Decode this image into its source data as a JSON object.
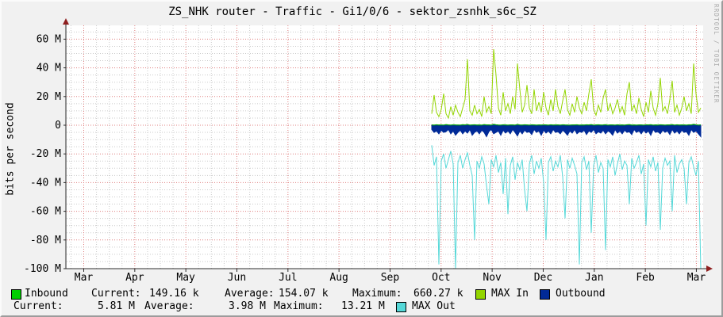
{
  "title": "ZS_NHK router - Traffic - Gi1/0/6 - sektor_zsnhk_s6c_SZ",
  "y_axis_label": "bits per second",
  "watermark": "RRDTOOL / TOBI OETIKER",
  "colors": {
    "background": "#F1F1F1",
    "canvas": "#FFFFFF",
    "grid_major": "#E08080",
    "grid_minor": "#CBCBCB",
    "axis": "#2C2C2C",
    "arrow": "#8F1F1F",
    "inbound": "#00CF00",
    "inbound_line": "#00A000",
    "max_in": "#93D500",
    "outbound": "#002A97",
    "max_out": "#55D8D8"
  },
  "legend": {
    "inbound_label": "Inbound",
    "max_in_label": "MAX In",
    "outbound_label": "Outbound",
    "max_out_label": "MAX Out",
    "row1": {
      "current_label": "Current:",
      "current": "149.16 k",
      "average_label": "Average:",
      "average": "154.07 k",
      "maximum_label": "Maximum:",
      "maximum": "660.27 k"
    },
    "row2": {
      "current_label": "Current:",
      "current": "5.81 M",
      "average_label": "Average:",
      "average": "3.98 M",
      "maximum_label": "Maximum:",
      "maximum": "13.21 M"
    }
  },
  "chart_data": {
    "type": "line",
    "title": "ZS_NHK router - Traffic - Gi1/0/6 - sektor_zsnhk_s6c_SZ",
    "xlabel": "",
    "ylabel": "bits per second",
    "units": "series values in Mbit/s (negative = outbound direction)",
    "ylim_M": [
      -100,
      70
    ],
    "y_tick_values_M": [
      60,
      40,
      20,
      0,
      -20,
      -40,
      -60,
      -80,
      -100
    ],
    "y_tick_labels": [
      "60 M",
      "40 M",
      "20 M",
      "0",
      "-20 M",
      "-40 M",
      "-60 M",
      "-80 M",
      "-100 M"
    ],
    "x_tick_labels": [
      "Mar",
      "Apr",
      "May",
      "Jun",
      "Jul",
      "Aug",
      "Sep",
      "Oct",
      "Nov",
      "Dec",
      "Jan",
      "Feb",
      "Mar"
    ],
    "legend_position": "bottom",
    "grid": "dotted; red major every 20M / monthly, gray minor every 5M / weekly",
    "note": "No data Mar through late Sep; all four series begin just before Oct and run to early Mar",
    "series": [
      {
        "name": "MAX In",
        "style": "line",
        "color": "#93D500",
        "values": [
          8,
          21,
          9,
          6,
          11,
          22,
          8,
          5,
          13,
          7,
          14,
          9,
          6,
          12,
          18,
          46,
          10,
          7,
          14,
          8,
          11,
          6,
          20,
          9,
          13,
          8,
          53,
          35,
          12,
          7,
          23,
          10,
          15,
          8,
          20,
          11,
          43,
          25,
          9,
          14,
          28,
          12,
          8,
          25,
          10,
          16,
          9,
          23,
          12,
          7,
          18,
          10,
          25,
          13,
          8,
          17,
          25,
          11,
          7,
          15,
          9,
          20,
          12,
          8,
          16,
          10,
          22,
          32,
          11,
          7,
          14,
          9,
          19,
          25,
          10,
          15,
          8,
          12,
          18,
          9,
          13,
          7,
          22,
          30,
          10,
          14,
          8,
          19,
          11,
          6,
          16,
          9,
          24,
          12,
          7,
          15,
          33,
          10,
          13,
          8,
          18,
          31,
          9,
          14,
          7,
          12,
          20,
          10,
          15,
          8,
          43,
          22,
          9,
          12
        ]
      },
      {
        "name": "Inbound",
        "style": "line",
        "color": "#00A000",
        "values": [
          0.2,
          0.1,
          0.3,
          0.15,
          0.25,
          0.1,
          0.4,
          0.2,
          0.1,
          0.3,
          0.2,
          0.15,
          0.1,
          0.35,
          0.2,
          0.5,
          0.1,
          0.2,
          0.3,
          0.15,
          0.2,
          0.1,
          0.4,
          0.2,
          0.25,
          0.1,
          0.6,
          0.3,
          0.15,
          0.1,
          0.3,
          0.2,
          0.1,
          0.25,
          0.2,
          0.1,
          0.5,
          0.2,
          0.15,
          0.3,
          0.2,
          0.1,
          0.3,
          0.2,
          0.1,
          0.25,
          0.15,
          0.3,
          0.2,
          0.1,
          0.3,
          0.15,
          0.25,
          0.2,
          0.1,
          0.3,
          0.2,
          0.15,
          0.1,
          0.25,
          0.2,
          0.3,
          0.1,
          0.2,
          0.15,
          0.3,
          0.2,
          0.4,
          0.1,
          0.2,
          0.3,
          0.15,
          0.2,
          0.35,
          0.1,
          0.25,
          0.2,
          0.1,
          0.3,
          0.15,
          0.2,
          0.1,
          0.3,
          0.4,
          0.15,
          0.2,
          0.1,
          0.25,
          0.2,
          0.1,
          0.3,
          0.2,
          0.35,
          0.1,
          0.2,
          0.15,
          0.3,
          0.2,
          0.1,
          0.25,
          0.2,
          0.4,
          0.1,
          0.3,
          0.15,
          0.2,
          0.25,
          0.1,
          0.3,
          0.2,
          0.6,
          0.3,
          0.1,
          0.2
        ]
      },
      {
        "name": "Outbound",
        "style": "area",
        "color": "#002A97",
        "values": [
          -3,
          -5,
          -4,
          -6,
          -3.5,
          -5,
          -4.5,
          -3,
          -6,
          -4,
          -7,
          -5,
          -3.5,
          -6,
          -4,
          -5.5,
          -3,
          -7,
          -5,
          -4,
          -6,
          -3.5,
          -5,
          -8,
          -4.5,
          -3,
          -6,
          -5,
          -4,
          -7,
          -3.5,
          -5.5,
          -4,
          -6,
          -3,
          -5,
          -7.5,
          -4,
          -6,
          -3.5,
          -5,
          -4.5,
          -6.5,
          -3,
          -5,
          -4,
          -7,
          -3.5,
          -5.5,
          -4,
          -6,
          -3,
          -5,
          -4.5,
          -6,
          -3.5,
          -5,
          -7,
          -4,
          -5.5,
          -3,
          -6,
          -4.5,
          -5,
          -3.5,
          -6.5,
          -4,
          -5,
          -3,
          -6,
          -4.5,
          -5.5,
          -3.5,
          -6,
          -4,
          -5,
          -7,
          -3,
          -5.5,
          -4,
          -6,
          -3.5,
          -5,
          -4.5,
          -6.5,
          -3,
          -5,
          -4,
          -6,
          -3.5,
          -5.5,
          -4,
          -7,
          -3,
          -5,
          -4.5,
          -6,
          -3.5,
          -5,
          -4,
          -6.5,
          -3,
          -5.5,
          -4,
          -6,
          -3.5,
          -5,
          -4.5,
          -7,
          -3,
          -5,
          -4,
          -6,
          -8
        ]
      },
      {
        "name": "MAX Out",
        "style": "line",
        "color": "#55D8D8",
        "values": [
          -14,
          -28,
          -22,
          -97,
          -25,
          -20,
          -30,
          -24,
          -18,
          -27,
          -100,
          -26,
          -21,
          -30,
          -24,
          -19,
          -28,
          -35,
          -80,
          -25,
          -30,
          -22,
          -27,
          -42,
          -55,
          -24,
          -29,
          -21,
          -33,
          -26,
          -48,
          -23,
          -62,
          -28,
          -22,
          -38,
          -26,
          -31,
          -24,
          -45,
          -60,
          -27,
          -21,
          -34,
          -25,
          -30,
          -23,
          -40,
          -80,
          -26,
          -22,
          -32,
          -25,
          -29,
          -21,
          -36,
          -65,
          -24,
          -30,
          -23,
          -28,
          -34,
          -97,
          -26,
          -22,
          -31,
          -25,
          -75,
          -28,
          -21,
          -33,
          -26,
          -30,
          -87,
          -24,
          -29,
          -22,
          -35,
          -27,
          -20,
          -31,
          -25,
          -28,
          -55,
          -23,
          -30,
          -26,
          -21,
          -34,
          -27,
          -70,
          -24,
          -29,
          -22,
          -32,
          -26,
          -73,
          -30,
          -23,
          -28,
          -25,
          -60,
          -21,
          -33,
          -27,
          -24,
          -30,
          -55,
          -26,
          -22,
          -29,
          -35,
          -25,
          -100
        ]
      }
    ]
  }
}
